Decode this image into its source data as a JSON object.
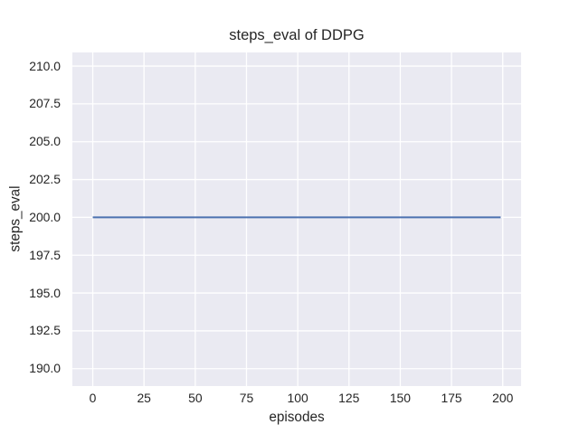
{
  "chart_data": {
    "type": "line",
    "title": "steps_eval of DDPG",
    "xlabel": "episodes",
    "ylabel": "steps_eval",
    "xlim": [
      -9.95,
      208.95
    ],
    "ylim": [
      188.85,
      210.9
    ],
    "xticks": [
      0,
      25,
      50,
      75,
      100,
      125,
      150,
      175,
      200
    ],
    "xtick_labels": [
      "0",
      "25",
      "50",
      "75",
      "100",
      "125",
      "150",
      "175",
      "200"
    ],
    "yticks": [
      190.0,
      192.5,
      195.0,
      197.5,
      200.0,
      202.5,
      205.0,
      207.5,
      210.0
    ],
    "ytick_labels": [
      "190.0",
      "192.5",
      "195.0",
      "197.5",
      "200.0",
      "202.5",
      "205.0",
      "207.5",
      "210.0"
    ],
    "grid": true,
    "legend": "none",
    "series": [
      {
        "name": "steps_eval of DDPG",
        "color": "#4c72b0",
        "description": "constant value 200 for every episode from 0 to 199",
        "x": [
          0,
          199
        ],
        "y": [
          200,
          200
        ]
      }
    ],
    "style": {
      "figure_background": "#ffffff",
      "axes_background": "#eaeaf2",
      "gridline_color": "#ffffff",
      "text_color": "#262626",
      "line_width": 2,
      "grid_width": 1.3
    }
  }
}
